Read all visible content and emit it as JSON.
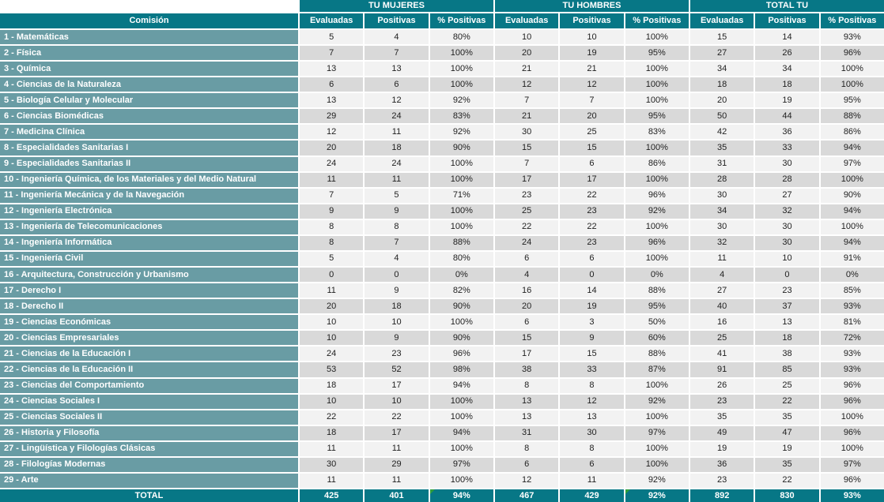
{
  "colors": {
    "teal_dark": "#077786",
    "teal_light": "#699CA4",
    "row_light": "#F2F2F2",
    "row_dark": "#D9D9D9",
    "flag_green": "#2E9E3C",
    "cell_text": "#1F1F1F"
  },
  "table": {
    "comision_header": "Comisión",
    "groups": [
      {
        "label": "TU MUJERES"
      },
      {
        "label": "TU HOMBRES"
      },
      {
        "label": "TOTAL TU"
      }
    ],
    "columns": [
      "Evaluadas",
      "Positivas",
      "% Positivas",
      "Evaluadas",
      "Positivas",
      "% Positivas",
      "Evaluadas",
      "Positivas",
      "% Positivas"
    ],
    "rows": [
      {
        "comision": "1 - Matemáticas",
        "values": [
          "5",
          "4",
          "80%",
          "10",
          "10",
          "100%",
          "15",
          "14",
          "93%"
        ]
      },
      {
        "comision": "2 - Física",
        "values": [
          "7",
          "7",
          "100%",
          "20",
          "19",
          "95%",
          "27",
          "26",
          "96%"
        ]
      },
      {
        "comision": "3 - Química",
        "values": [
          "13",
          "13",
          "100%",
          "21",
          "21",
          "100%",
          "34",
          "34",
          "100%"
        ]
      },
      {
        "comision": "4 - Ciencias de la Naturaleza",
        "values": [
          "6",
          "6",
          "100%",
          "12",
          "12",
          "100%",
          "18",
          "18",
          "100%"
        ]
      },
      {
        "comision": "5 - Biología Celular y Molecular",
        "values": [
          "13",
          "12",
          "92%",
          "7",
          "7",
          "100%",
          "20",
          "19",
          "95%"
        ]
      },
      {
        "comision": "6 - Ciencias Biomédicas",
        "values": [
          "29",
          "24",
          "83%",
          "21",
          "20",
          "95%",
          "50",
          "44",
          "88%"
        ]
      },
      {
        "comision": "7 - Medicina Clínica",
        "values": [
          "12",
          "11",
          "92%",
          "30",
          "25",
          "83%",
          "42",
          "36",
          "86%"
        ]
      },
      {
        "comision": "8 - Especialidades Sanitarias I",
        "values": [
          "20",
          "18",
          "90%",
          "15",
          "15",
          "100%",
          "35",
          "33",
          "94%"
        ]
      },
      {
        "comision": "9 - Especialidades Sanitarias II",
        "values": [
          "24",
          "24",
          "100%",
          "7",
          "6",
          "86%",
          "31",
          "30",
          "97%"
        ]
      },
      {
        "comision": "10 - Ingeniería Química, de los Materiales y del Medio Natural",
        "values": [
          "11",
          "11",
          "100%",
          "17",
          "17",
          "100%",
          "28",
          "28",
          "100%"
        ]
      },
      {
        "comision": "11 - Ingeniería Mecánica y de la Navegación",
        "values": [
          "7",
          "5",
          "71%",
          "23",
          "22",
          "96%",
          "30",
          "27",
          "90%"
        ]
      },
      {
        "comision": "12 - Ingeniería Electrónica",
        "values": [
          "9",
          "9",
          "100%",
          "25",
          "23",
          "92%",
          "34",
          "32",
          "94%"
        ]
      },
      {
        "comision": "13 - Ingeniería de Telecomunicaciones",
        "values": [
          "8",
          "8",
          "100%",
          "22",
          "22",
          "100%",
          "30",
          "30",
          "100%"
        ]
      },
      {
        "comision": "14 - Ingeniería Informática",
        "values": [
          "8",
          "7",
          "88%",
          "24",
          "23",
          "96%",
          "32",
          "30",
          "94%"
        ]
      },
      {
        "comision": "15 - Ingeniería Civil",
        "values": [
          "5",
          "4",
          "80%",
          "6",
          "6",
          "100%",
          "11",
          "10",
          "91%"
        ]
      },
      {
        "comision": "16 - Arquitectura, Construcción y Urbanismo",
        "values": [
          "0",
          "0",
          "0%",
          "4",
          "0",
          "0%",
          "4",
          "0",
          "0%"
        ]
      },
      {
        "comision": "17 - Derecho I",
        "values": [
          "11",
          "9",
          "82%",
          "16",
          "14",
          "88%",
          "27",
          "23",
          "85%"
        ]
      },
      {
        "comision": "18 - Derecho II",
        "values": [
          "20",
          "18",
          "90%",
          "20",
          "19",
          "95%",
          "40",
          "37",
          "93%"
        ]
      },
      {
        "comision": "19 - Ciencias Económicas",
        "values": [
          "10",
          "10",
          "100%",
          "6",
          "3",
          "50%",
          "16",
          "13",
          "81%"
        ]
      },
      {
        "comision": "20 - Ciencias Empresariales",
        "values": [
          "10",
          "9",
          "90%",
          "15",
          "9",
          "60%",
          "25",
          "18",
          "72%"
        ]
      },
      {
        "comision": "21 - Ciencias de la Educación I",
        "values": [
          "24",
          "23",
          "96%",
          "17",
          "15",
          "88%",
          "41",
          "38",
          "93%"
        ]
      },
      {
        "comision": "22 - Ciencias de la Educación II",
        "values": [
          "53",
          "52",
          "98%",
          "38",
          "33",
          "87%",
          "91",
          "85",
          "93%"
        ]
      },
      {
        "comision": "23 - Ciencias del Comportamiento",
        "values": [
          "18",
          "17",
          "94%",
          "8",
          "8",
          "100%",
          "26",
          "25",
          "96%"
        ]
      },
      {
        "comision": "24 - Ciencias Sociales I",
        "values": [
          "10",
          "10",
          "100%",
          "13",
          "12",
          "92%",
          "23",
          "22",
          "96%"
        ]
      },
      {
        "comision": "25 - Ciencias Sociales II",
        "values": [
          "22",
          "22",
          "100%",
          "13",
          "13",
          "100%",
          "35",
          "35",
          "100%"
        ]
      },
      {
        "comision": "26 - Historia y Filosofía",
        "values": [
          "18",
          "17",
          "94%",
          "31",
          "30",
          "97%",
          "49",
          "47",
          "96%"
        ]
      },
      {
        "comision": "27 - Lingüística y Filologías Clásicas",
        "values": [
          "11",
          "11",
          "100%",
          "8",
          "8",
          "100%",
          "19",
          "19",
          "100%"
        ]
      },
      {
        "comision": "28 - Filologías Modernas",
        "values": [
          "30",
          "29",
          "97%",
          "6",
          "6",
          "100%",
          "36",
          "35",
          "97%"
        ]
      },
      {
        "comision": "29 - Arte",
        "values": [
          "11",
          "11",
          "100%",
          "12",
          "11",
          "92%",
          "23",
          "22",
          "96%"
        ]
      }
    ],
    "total": {
      "label": "TOTAL",
      "values": [
        "425",
        "401",
        "94%",
        "467",
        "429",
        "92%",
        "892",
        "830",
        "93%"
      ],
      "error_flags": [
        false,
        false,
        true,
        false,
        false,
        true,
        false,
        false,
        false
      ]
    }
  }
}
